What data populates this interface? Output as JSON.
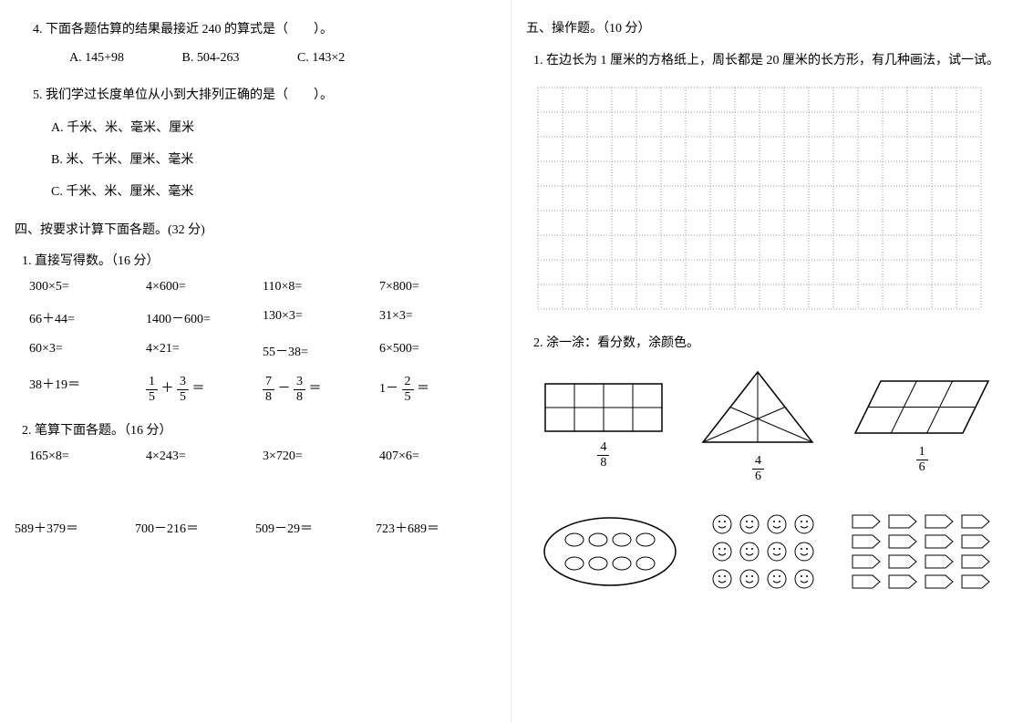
{
  "left": {
    "q4": {
      "text": "4. 下面各题估算的结果最接近 240 的算式是（　　）。",
      "optA": "A. 145+98",
      "optB": "B. 504-263",
      "optC": "C. 143×2"
    },
    "q5": {
      "text": "5. 我们学过长度单位从小到大排列正确的是（　　）。",
      "optA": "A. 千米、米、毫米、厘米",
      "optB": "B. 米、千米、厘米、毫米",
      "optC": "C. 千米、米、厘米、毫米"
    },
    "sec4": "四、按要求计算下面各题。(32 分)",
    "sub1": "1. 直接写得数。（16 分）",
    "calc": {
      "r1c1": "300×5=",
      "r1c2": "4×600=",
      "r1c3": "110×8=",
      "r1c4": "7×800=",
      "r2c1": "66＋44=",
      "r2c2": "1400－600=",
      "r2c3": "130×3=",
      "r2c4": "31×3=",
      "r3c1": "60×3=",
      "r3c2": "4×21=",
      "r3c3": "55－38=",
      "r3c4": "6×500=",
      "r4c1": "38＋19＝"
    },
    "frac": {
      "f1": {
        "n1": "1",
        "d1": "5",
        "op": "＋",
        "n2": "3",
        "d2": "5",
        "eq": "＝"
      },
      "f2": {
        "n1": "7",
        "d1": "8",
        "op": "－",
        "n2": "3",
        "d2": "8",
        "eq": "＝"
      },
      "f3": {
        "pre": "1－",
        "n": "2",
        "d": "5",
        "eq": "＝"
      }
    },
    "sub2": "2. 笔算下面各题。（16 分）",
    "calc2": {
      "c1": "165×8=",
      "c2": "4×243=",
      "c3": "3×720=",
      "c4": "407×6="
    },
    "calc3": {
      "c1": "589＋379＝",
      "c2": "700－216＝",
      "c3": "509－29＝",
      "c4": "723＋689＝"
    }
  },
  "right": {
    "sec5": "五、操作题。（10 分）",
    "q1": "1. 在边长为 1 厘米的方格纸上，周长都是 20 厘米的长方形，有几种画法，试一试。",
    "grid": {
      "rows": 9,
      "cols": 18,
      "cell": 27,
      "stroke": "#999999"
    },
    "q2": "2. 涂一涂：看分数，涂颜色。",
    "shapes": {
      "rect": {
        "label_n": "4",
        "label_d": "8"
      },
      "tri": {
        "label_n": "4",
        "label_d": "6"
      },
      "para": {
        "label_n": "1",
        "label_d": "6"
      }
    }
  }
}
